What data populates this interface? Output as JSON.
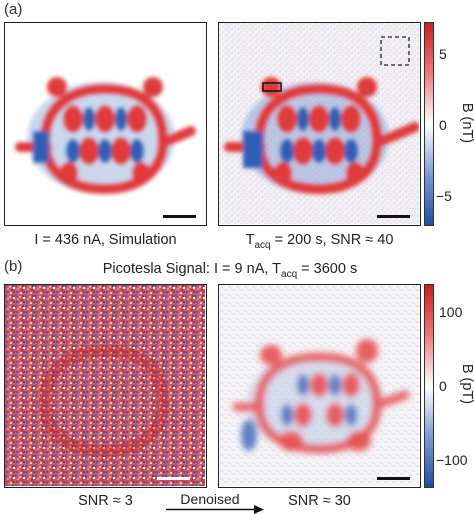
{
  "panel_a": {
    "label": "(a)",
    "left_caption": "I = 436 nA, Simulation",
    "right_caption_prefix": "T",
    "right_caption_sub": "acq",
    "right_caption_suffix": " = 200 s, SNR ≈ 40",
    "colorbar": {
      "title": "B (nT)",
      "ticks": [
        "5",
        "0",
        "−5"
      ],
      "tick_values": [
        5,
        0,
        -5
      ],
      "range": [
        -6.5,
        6.5
      ],
      "colors": {
        "max": "#d62728",
        "mid": "#ffffff",
        "min": "#1f4fa0"
      }
    }
  },
  "panel_b": {
    "label": "(b)",
    "title_prefix": "Picotesla Signal: I = 9 nA, T",
    "title_sub": "acq",
    "title_suffix": " = 3600 s",
    "left_caption": "SNR ≈ 3",
    "arrow_label": "Denoised",
    "right_caption": "SNR ≈ 30",
    "colorbar": {
      "title": "B (pT)",
      "ticks": [
        "100",
        "0",
        "−100"
      ],
      "tick_values": [
        100,
        0,
        -100
      ],
      "range": [
        -130,
        130
      ],
      "colors": {
        "max": "#d62728",
        "mid": "#ffffff",
        "min": "#1f4fa0"
      }
    }
  }
}
